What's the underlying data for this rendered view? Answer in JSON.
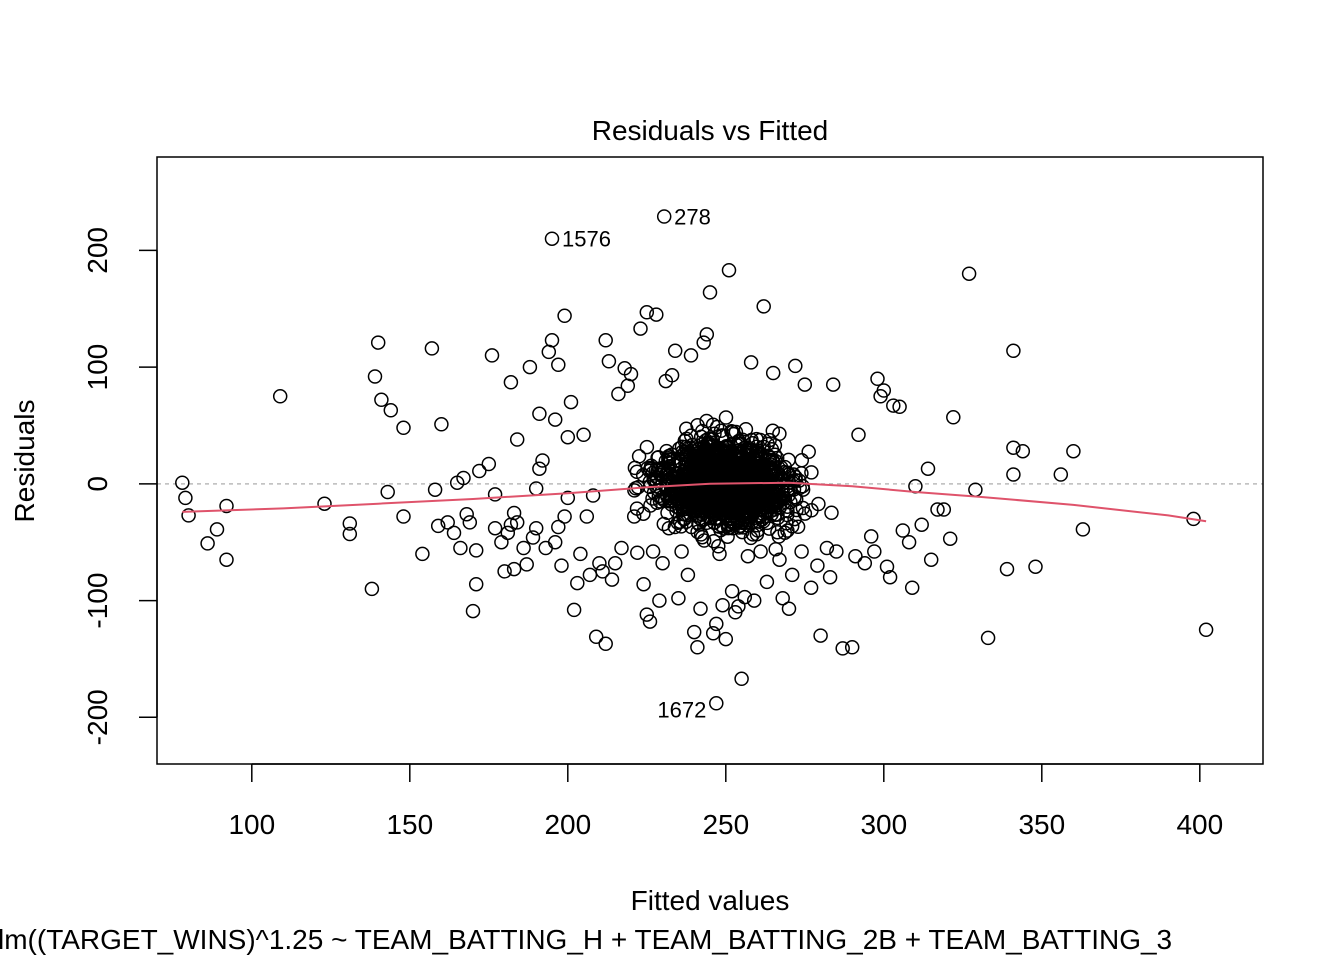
{
  "chart_data": {
    "type": "scatter",
    "title": "Residuals vs Fitted",
    "xlabel": "Fitted values",
    "ylabel": "Residuals",
    "subtitle": "lm((TARGET_WINS)^1.25 ~ TEAM_BATTING_H + TEAM_BATTING_2B + TEAM_BATTING_3",
    "xlim": [
      70,
      420
    ],
    "ylim": [
      -240,
      280
    ],
    "x_ticks": [
      100,
      150,
      200,
      250,
      300,
      350,
      400
    ],
    "x_tick_labels": [
      "100",
      "150",
      "200",
      "250",
      "300",
      "350",
      "400"
    ],
    "y_ticks": [
      -200,
      -100,
      0,
      100,
      200
    ],
    "y_tick_labels": [
      "-200",
      "-100",
      "0",
      "100",
      "200"
    ],
    "reference_line": {
      "y": 0,
      "color": "#bbbbbb",
      "style": "dotted"
    },
    "smooth_color": "#df536b",
    "point_color": "#000000",
    "smooth": [
      [
        78,
        -24
      ],
      [
        110,
        -21
      ],
      [
        140,
        -17
      ],
      [
        170,
        -13
      ],
      [
        200,
        -8
      ],
      [
        225,
        -3
      ],
      [
        245,
        0
      ],
      [
        270,
        1
      ],
      [
        290,
        -2
      ],
      [
        310,
        -7
      ],
      [
        330,
        -11
      ],
      [
        360,
        -18
      ],
      [
        390,
        -27
      ],
      [
        402,
        -32
      ]
    ],
    "labeled_points": [
      {
        "label": "278",
        "x": 230.5,
        "y": 229
      },
      {
        "label": "1576",
        "x": 195,
        "y": 210
      },
      {
        "label": "1672",
        "x": 247,
        "y": -188
      }
    ],
    "points": [
      [
        78,
        1
      ],
      [
        79,
        -12
      ],
      [
        80,
        -27
      ],
      [
        86,
        -51
      ],
      [
        89,
        -39
      ],
      [
        92,
        -65
      ],
      [
        92,
        -19
      ],
      [
        109,
        75
      ],
      [
        123,
        -17
      ],
      [
        131,
        -34
      ],
      [
        131,
        -43
      ],
      [
        138,
        -90
      ],
      [
        139,
        92
      ],
      [
        140,
        121
      ],
      [
        141,
        72
      ],
      [
        143,
        -7
      ],
      [
        144,
        63
      ],
      [
        148,
        48
      ],
      [
        148,
        -28
      ],
      [
        154,
        -60
      ],
      [
        157,
        116
      ],
      [
        158,
        -5
      ],
      [
        159,
        -36
      ],
      [
        160,
        51
      ],
      [
        162,
        -33
      ],
      [
        164,
        -42
      ],
      [
        165,
        1
      ],
      [
        166,
        -55
      ],
      [
        167,
        5
      ],
      [
        168,
        -26
      ],
      [
        169,
        -33
      ],
      [
        170,
        -109
      ],
      [
        171,
        -57
      ],
      [
        171,
        -86
      ],
      [
        172,
        11
      ],
      [
        175,
        17
      ],
      [
        176,
        110
      ],
      [
        177,
        -38
      ],
      [
        177,
        -9
      ],
      [
        179,
        -50
      ],
      [
        180,
        -75
      ],
      [
        181,
        -42
      ],
      [
        182,
        -35
      ],
      [
        182,
        87
      ],
      [
        183,
        -25
      ],
      [
        183,
        -73
      ],
      [
        184,
        -33
      ],
      [
        184,
        38
      ],
      [
        186,
        -55
      ],
      [
        187,
        -69
      ],
      [
        188,
        100
      ],
      [
        189,
        -46
      ],
      [
        190,
        -4
      ],
      [
        190,
        -38
      ],
      [
        191,
        60
      ],
      [
        191,
        13
      ],
      [
        192,
        20
      ],
      [
        193,
        -55
      ],
      [
        194,
        113
      ],
      [
        195,
        123
      ],
      [
        196,
        -50
      ],
      [
        196,
        55
      ],
      [
        197,
        -37
      ],
      [
        197,
        102
      ],
      [
        198,
        -70
      ],
      [
        199,
        144
      ],
      [
        199,
        -28
      ],
      [
        200,
        40
      ],
      [
        200,
        -12
      ],
      [
        201,
        70
      ],
      [
        202,
        -108
      ],
      [
        203,
        -85
      ],
      [
        204,
        -60
      ],
      [
        205,
        42
      ],
      [
        206,
        -28
      ],
      [
        207,
        -78
      ],
      [
        208,
        -10
      ],
      [
        209,
        -131
      ],
      [
        210,
        -68
      ],
      [
        211,
        -75
      ],
      [
        212,
        123
      ],
      [
        212,
        -137
      ],
      [
        213,
        105
      ],
      [
        214,
        -82
      ],
      [
        215,
        -68
      ],
      [
        216,
        77
      ],
      [
        217,
        -55
      ],
      [
        218,
        99
      ],
      [
        219,
        84
      ],
      [
        220,
        94
      ],
      [
        221,
        -28
      ],
      [
        222,
        -59
      ],
      [
        223,
        133
      ],
      [
        224,
        -86
      ],
      [
        225,
        -112
      ],
      [
        225,
        147
      ],
      [
        226,
        -118
      ],
      [
        227,
        -58
      ],
      [
        228,
        145
      ],
      [
        229,
        -100
      ],
      [
        230,
        -68
      ],
      [
        231,
        88
      ],
      [
        232,
        -38
      ],
      [
        233,
        93
      ],
      [
        234,
        114
      ],
      [
        235,
        -98
      ],
      [
        236,
        -58
      ],
      [
        237,
        -30
      ],
      [
        238,
        -78
      ],
      [
        239,
        110
      ],
      [
        240,
        -127
      ],
      [
        241,
        -140
      ],
      [
        242,
        -107
      ],
      [
        243,
        121
      ],
      [
        244,
        128
      ],
      [
        245,
        164
      ],
      [
        246,
        -128
      ],
      [
        247,
        -120
      ],
      [
        248,
        -60
      ],
      [
        249,
        -104
      ],
      [
        250,
        -133
      ],
      [
        251,
        183
      ],
      [
        252,
        -92
      ],
      [
        253,
        -110
      ],
      [
        254,
        -105
      ],
      [
        255,
        -167
      ],
      [
        256,
        -97
      ],
      [
        257,
        -62
      ],
      [
        258,
        104
      ],
      [
        259,
        -100
      ],
      [
        261,
        -58
      ],
      [
        262,
        152
      ],
      [
        263,
        -84
      ],
      [
        265,
        95
      ],
      [
        267,
        -65
      ],
      [
        268,
        -98
      ],
      [
        270,
        -107
      ],
      [
        271,
        -78
      ],
      [
        272,
        101
      ],
      [
        274,
        -58
      ],
      [
        275,
        85
      ],
      [
        277,
        -89
      ],
      [
        279,
        -70
      ],
      [
        280,
        -130
      ],
      [
        282,
        -55
      ],
      [
        283,
        -80
      ],
      [
        284,
        85
      ],
      [
        285,
        -58
      ],
      [
        287,
        -141
      ],
      [
        290,
        -140
      ],
      [
        291,
        -62
      ],
      [
        292,
        42
      ],
      [
        294,
        -68
      ],
      [
        296,
        -45
      ],
      [
        297,
        -58
      ],
      [
        298,
        90
      ],
      [
        299,
        75
      ],
      [
        300,
        80
      ],
      [
        301,
        -71
      ],
      [
        302,
        -80
      ],
      [
        303,
        67
      ],
      [
        305,
        66
      ],
      [
        306,
        -40
      ],
      [
        308,
        -50
      ],
      [
        309,
        -89
      ],
      [
        310,
        -2
      ],
      [
        312,
        -35
      ],
      [
        314,
        13
      ],
      [
        315,
        -65
      ],
      [
        317,
        -22
      ],
      [
        319,
        -22
      ],
      [
        321,
        -47
      ],
      [
        322,
        57
      ],
      [
        327,
        180
      ],
      [
        329,
        -5
      ],
      [
        333,
        -132
      ],
      [
        339,
        -73
      ],
      [
        341,
        8
      ],
      [
        341,
        114
      ],
      [
        341,
        31
      ],
      [
        344,
        28
      ],
      [
        348,
        -71
      ],
      [
        356,
        8
      ],
      [
        360,
        28
      ],
      [
        363,
        -39
      ],
      [
        398,
        -30
      ],
      [
        402,
        -125
      ]
    ],
    "cluster": {
      "n": 1400,
      "x_range": [
        205,
        295
      ],
      "y_range": [
        -75,
        75
      ]
    }
  }
}
